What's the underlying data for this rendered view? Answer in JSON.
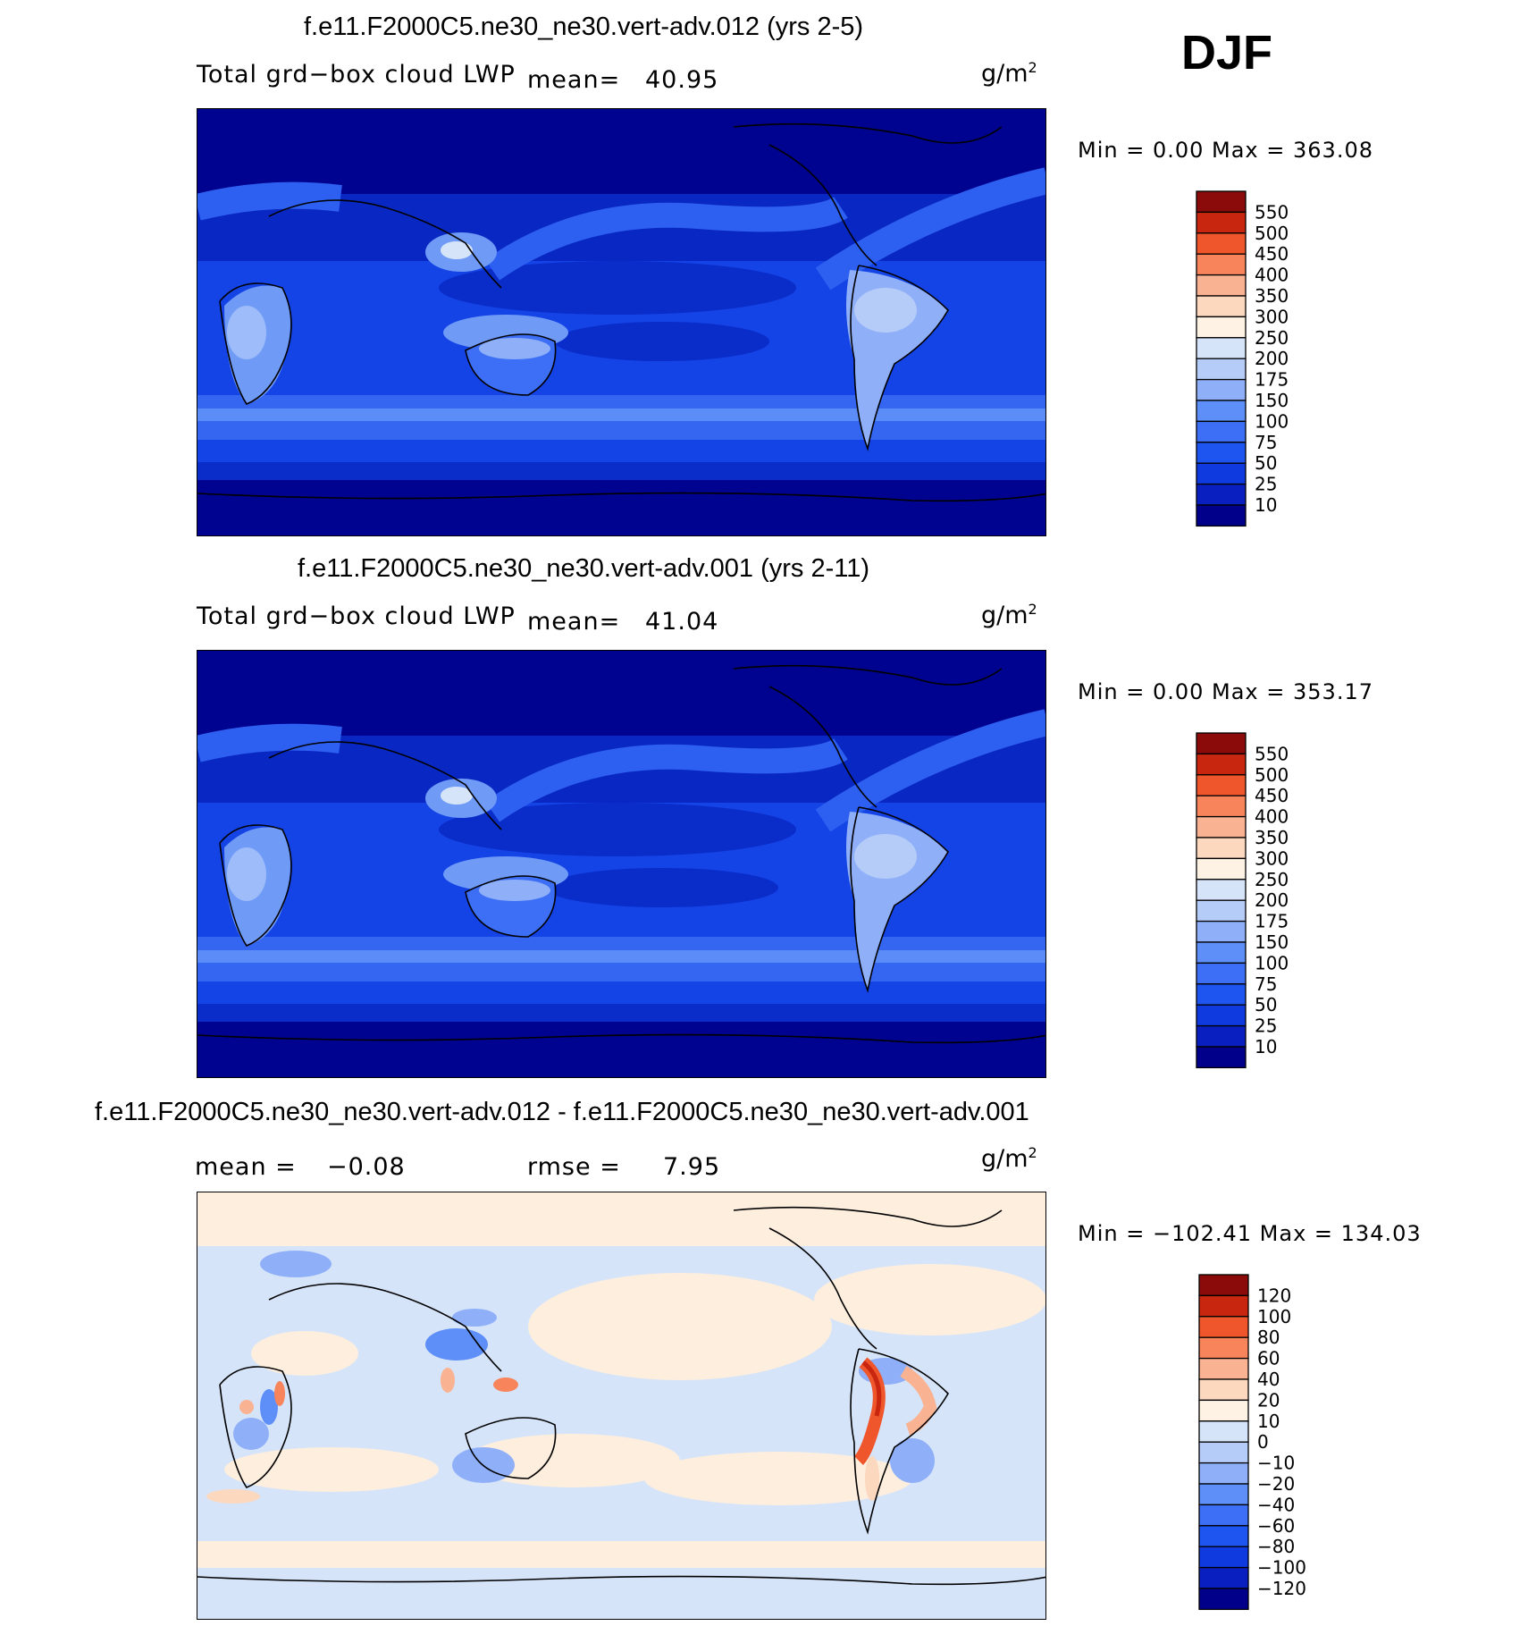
{
  "season": "DJF",
  "panels": [
    {
      "title": "f.e11.F2000C5.ne30_ne30.vert-adv.012 (yrs 2-5)",
      "variable": "Total grd−box cloud LWP",
      "stat_label": "mean=",
      "stat_value": "40.95",
      "units": "g/m",
      "units_sup": "2",
      "minmax": "Min =    0.00 Max = 363.08"
    },
    {
      "title": "f.e11.F2000C5.ne30_ne30.vert-adv.001 (yrs 2-11)",
      "variable": "Total grd−box cloud LWP",
      "stat_label": "mean=",
      "stat_value": "41.04",
      "units": "g/m",
      "units_sup": "2",
      "minmax": "Min =    0.00 Max = 353.17"
    },
    {
      "title": "f.e11.F2000C5.ne30_ne30.vert-adv.012 - f.e11.F2000C5.ne30_ne30.vert-adv.001",
      "mean_label": "mean =",
      "mean_value": "−0.08",
      "rmse_label": "rmse =",
      "rmse_value": "7.95",
      "units": "g/m",
      "units_sup": "2",
      "minmax": "Min = −102.41 Max = 134.03"
    }
  ],
  "chart_data": [
    {
      "type": "heatmap",
      "title": "f.e11.F2000C5.ne30_ne30.vert-adv.012 (yrs 2-5)",
      "field": "Total grd-box cloud LWP",
      "units": "g/m2",
      "mean": 40.95,
      "min": 0.0,
      "max": 363.08,
      "projection": "cylindrical equidistant, centered on Pacific",
      "colorbar": {
        "levels": [
          10,
          25,
          50,
          75,
          100,
          150,
          175,
          200,
          250,
          300,
          350,
          400,
          450,
          500,
          550
        ],
        "colors": [
          "#00008b",
          "#0a1fbf",
          "#0f3adf",
          "#1e54f0",
          "#3d6ff6",
          "#5e8ff8",
          "#8fb0f9",
          "#b5ccf8",
          "#d6e4fa",
          "#fdf2e4",
          "#fcd8bf",
          "#fab392",
          "#f7845a",
          "#f0562c",
          "#c9260f",
          "#8b0a0a"
        ]
      }
    },
    {
      "type": "heatmap",
      "title": "f.e11.F2000C5.ne30_ne30.vert-adv.001 (yrs 2-11)",
      "field": "Total grd-box cloud LWP",
      "units": "g/m2",
      "mean": 41.04,
      "min": 0.0,
      "max": 353.17,
      "projection": "cylindrical equidistant, centered on Pacific",
      "colorbar": {
        "levels": [
          10,
          25,
          50,
          75,
          100,
          150,
          175,
          200,
          250,
          300,
          350,
          400,
          450,
          500,
          550
        ],
        "colors": [
          "#00008b",
          "#0a1fbf",
          "#0f3adf",
          "#1e54f0",
          "#3d6ff6",
          "#5e8ff8",
          "#8fb0f9",
          "#b5ccf8",
          "#d6e4fa",
          "#fdf2e4",
          "#fcd8bf",
          "#fab392",
          "#f7845a",
          "#f0562c",
          "#c9260f",
          "#8b0a0a"
        ]
      }
    },
    {
      "type": "heatmap",
      "title": "f.e11.F2000C5.ne30_ne30.vert-adv.012 - f.e11.F2000C5.ne30_ne30.vert-adv.001",
      "field": "difference",
      "units": "g/m2",
      "mean": -0.08,
      "rmse": 7.95,
      "min": -102.41,
      "max": 134.03,
      "colorbar": {
        "levels": [
          -120,
          -100,
          -80,
          -60,
          -40,
          -20,
          -10,
          0,
          10,
          20,
          40,
          60,
          80,
          100,
          120
        ],
        "colors": [
          "#00008b",
          "#0a1fbf",
          "#0f3adf",
          "#1e54f0",
          "#3d6ff6",
          "#5e8ff8",
          "#8fb0f9",
          "#b5ccf8",
          "#d6e4fa",
          "#fdf2e4",
          "#fcd8bf",
          "#fab392",
          "#f7845a",
          "#f0562c",
          "#c9260f",
          "#8b0a0a"
        ]
      }
    }
  ]
}
